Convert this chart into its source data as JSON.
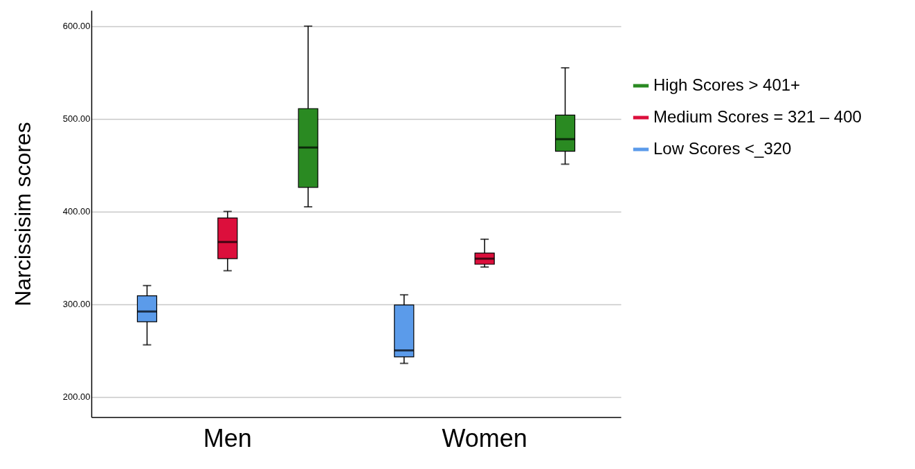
{
  "chart_data": {
    "type": "box",
    "ylabel": "Narcissisim scores",
    "categories": [
      "Men",
      "Women"
    ],
    "ylim": [
      178,
      617
    ],
    "yticks": [
      {
        "value": 200,
        "label": "200.00"
      },
      {
        "value": 300,
        "label": "300.00"
      },
      {
        "value": 400,
        "label": "400.00"
      },
      {
        "value": 500,
        "label": "500.00"
      },
      {
        "value": 600,
        "label": "600.00"
      }
    ],
    "grid": "y",
    "legend": "right",
    "series": [
      {
        "name": "Low Scores <_320",
        "color": "#5b9bea",
        "boxes": [
          {
            "low": 256,
            "q1": 281,
            "median": 292,
            "q3": 309,
            "high": 320
          },
          {
            "low": 236,
            "q1": 243,
            "median": 250,
            "q3": 299,
            "high": 310
          }
        ]
      },
      {
        "name": "Medium Scores = 321 – 400",
        "color": "#dc0f3c",
        "boxes": [
          {
            "low": 336,
            "q1": 349,
            "median": 367,
            "q3": 393,
            "high": 400
          },
          {
            "low": 340,
            "q1": 343,
            "median": 349,
            "q3": 355,
            "high": 370
          }
        ]
      },
      {
        "name": "High Scores > 401+",
        "color": "#2a8a22",
        "boxes": [
          {
            "low": 405,
            "q1": 426,
            "median": 469,
            "q3": 511,
            "high": 600
          },
          {
            "low": 451,
            "q1": 465,
            "median": 478,
            "q3": 504,
            "high": 555
          }
        ]
      }
    ]
  }
}
